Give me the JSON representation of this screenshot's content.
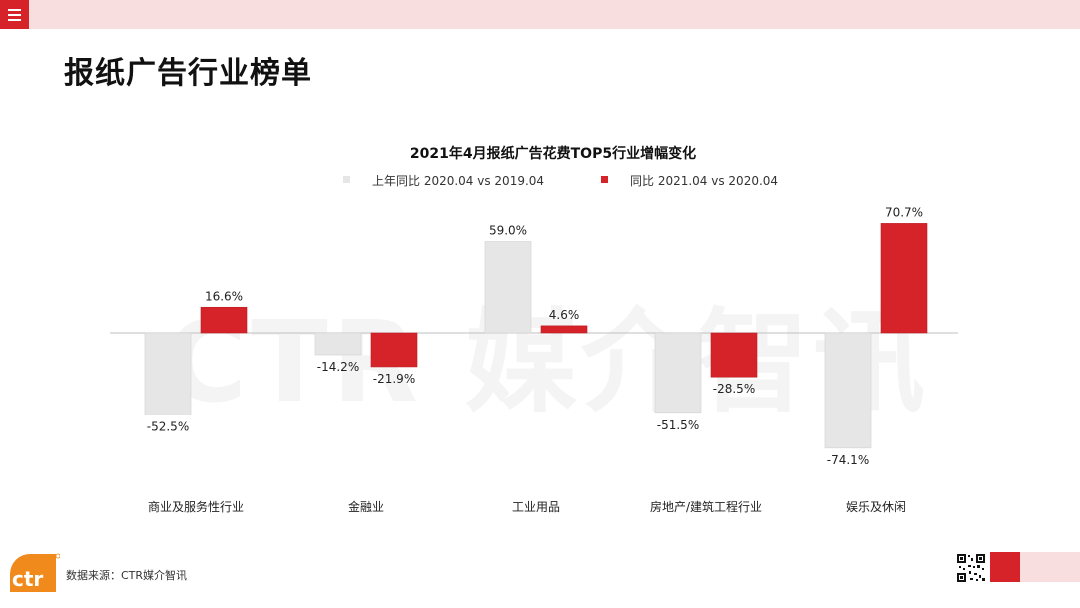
{
  "page": {
    "title": "报纸广告行业榜单",
    "source": "数据来源：CTR媒介智讯",
    "watermark": "CTR 媒介智讯",
    "logo_text": "ctr"
  },
  "colors": {
    "accent": "#d6232a",
    "accent_light": "#f9dedf",
    "series_prev": "#e6e6e6",
    "series_curr": "#d6232a"
  },
  "icons": {
    "menu": "hamburger-menu-icon",
    "qr": "qr-code-icon",
    "logo": "ctr-logo-icon"
  },
  "chart_data": {
    "type": "bar",
    "title": "2021年4月报纸广告花费TOP5行业增幅变化",
    "categories": [
      "商业及服务性行业",
      "金融业",
      "工业用品",
      "房地产/建筑工程行业",
      "娱乐及休闲"
    ],
    "series": [
      {
        "name": "上年同比 2020.04 vs 2019.04",
        "values": [
          -52.5,
          -14.2,
          59.0,
          -51.5,
          -74.1
        ],
        "labels": [
          "-52.5%",
          "-14.2%",
          "59.0%",
          "-51.5%",
          "-74.1%"
        ]
      },
      {
        "name": "同比 2021.04 vs 2020.04",
        "values": [
          16.6,
          -21.9,
          4.6,
          -28.5,
          70.7
        ],
        "labels": [
          "16.6%",
          "-21.9%",
          "4.6%",
          "-28.5%",
          "70.7%"
        ]
      }
    ],
    "value_unit": "%",
    "ylim": [
      -80,
      80
    ],
    "grid": false,
    "legend_position": "top"
  }
}
